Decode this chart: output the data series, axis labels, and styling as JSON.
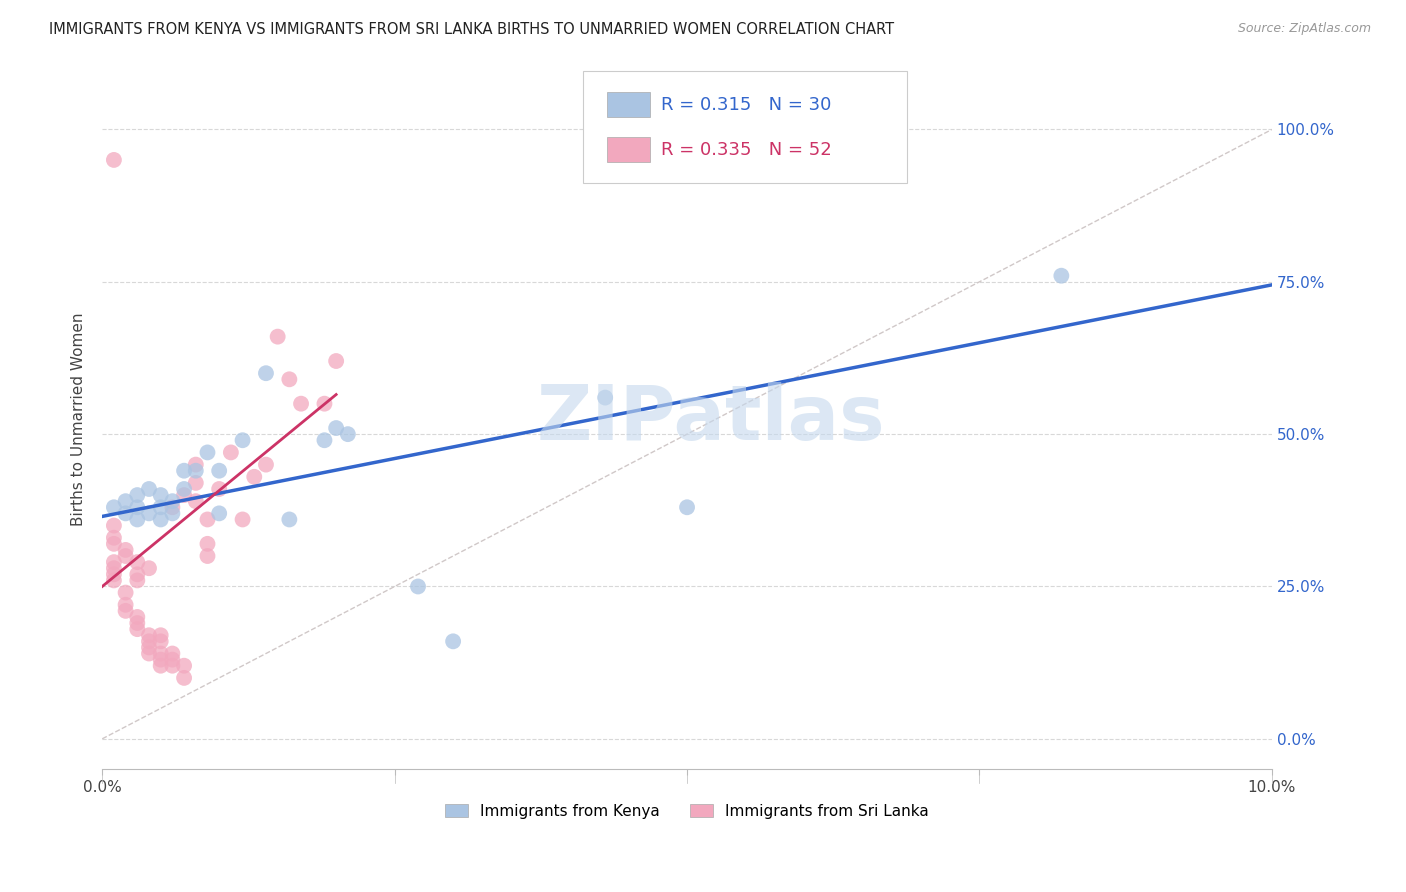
{
  "title": "IMMIGRANTS FROM KENYA VS IMMIGRANTS FROM SRI LANKA BIRTHS TO UNMARRIED WOMEN CORRELATION CHART",
  "source": "Source: ZipAtlas.com",
  "ylabel": "Births to Unmarried Women",
  "legend1_label": "Immigrants from Kenya",
  "legend2_label": "Immigrants from Sri Lanka",
  "R_kenya": "0.315",
  "N_kenya": "30",
  "R_srilanka": "0.335",
  "N_srilanka": "52",
  "kenya_color": "#aac4e2",
  "srilanka_color": "#f2a8be",
  "kenya_line_color": "#3366cc",
  "srilanka_line_color": "#cc3366",
  "diagonal_color": "#cccccc",
  "watermark": "ZIPatlas",
  "watermark_color": "#c5d8ed",
  "kenya_x": [
    0.001,
    0.002,
    0.002,
    0.003,
    0.003,
    0.003,
    0.004,
    0.004,
    0.005,
    0.005,
    0.005,
    0.006,
    0.006,
    0.007,
    0.007,
    0.008,
    0.009,
    0.01,
    0.01,
    0.012,
    0.014,
    0.016,
    0.019,
    0.02,
    0.021,
    0.027,
    0.03,
    0.043,
    0.05,
    0.082
  ],
  "kenya_y": [
    0.38,
    0.37,
    0.39,
    0.36,
    0.38,
    0.4,
    0.37,
    0.41,
    0.36,
    0.38,
    0.4,
    0.37,
    0.39,
    0.41,
    0.44,
    0.44,
    0.47,
    0.37,
    0.44,
    0.49,
    0.6,
    0.36,
    0.49,
    0.51,
    0.5,
    0.25,
    0.16,
    0.56,
    0.38,
    0.76
  ],
  "srilanka_x": [
    0.001,
    0.001,
    0.001,
    0.001,
    0.001,
    0.001,
    0.001,
    0.001,
    0.002,
    0.002,
    0.002,
    0.002,
    0.002,
    0.003,
    0.003,
    0.003,
    0.003,
    0.003,
    0.003,
    0.004,
    0.004,
    0.004,
    0.004,
    0.004,
    0.005,
    0.005,
    0.005,
    0.005,
    0.005,
    0.006,
    0.006,
    0.006,
    0.006,
    0.007,
    0.007,
    0.007,
    0.008,
    0.008,
    0.008,
    0.009,
    0.009,
    0.009,
    0.01,
    0.011,
    0.012,
    0.013,
    0.014,
    0.015,
    0.016,
    0.017,
    0.019,
    0.02
  ],
  "srilanka_y": [
    0.32,
    0.33,
    0.35,
    0.29,
    0.28,
    0.27,
    0.26,
    0.95,
    0.3,
    0.31,
    0.24,
    0.22,
    0.21,
    0.2,
    0.19,
    0.18,
    0.27,
    0.26,
    0.29,
    0.17,
    0.16,
    0.15,
    0.14,
    0.28,
    0.14,
    0.13,
    0.12,
    0.16,
    0.17,
    0.13,
    0.12,
    0.14,
    0.38,
    0.1,
    0.12,
    0.4,
    0.39,
    0.42,
    0.45,
    0.3,
    0.32,
    0.36,
    0.41,
    0.47,
    0.36,
    0.43,
    0.45,
    0.66,
    0.59,
    0.55,
    0.55,
    0.62
  ],
  "xlim": [
    0.0,
    0.1
  ],
  "ylim": [
    -0.05,
    1.1
  ],
  "ytick_vals": [
    0.0,
    0.25,
    0.5,
    0.75,
    1.0
  ],
  "ytick_labels": [
    "0.0%",
    "25.0%",
    "50.0%",
    "75.0%",
    "100.0%"
  ],
  "xtick_vals": [
    0.0,
    0.025,
    0.05,
    0.075,
    0.1
  ],
  "xtick_edge_vals": [
    0.0,
    0.1
  ],
  "xtick_edge_labels": [
    "0.0%",
    "10.0%"
  ],
  "kenya_line_x0": 0.0,
  "kenya_line_y0": 0.365,
  "kenya_line_x1": 0.1,
  "kenya_line_y1": 0.745,
  "srilanka_line_x0": 0.0,
  "srilanka_line_y0": 0.25,
  "srilanka_line_x1": 0.02,
  "srilanka_line_y1": 0.565
}
